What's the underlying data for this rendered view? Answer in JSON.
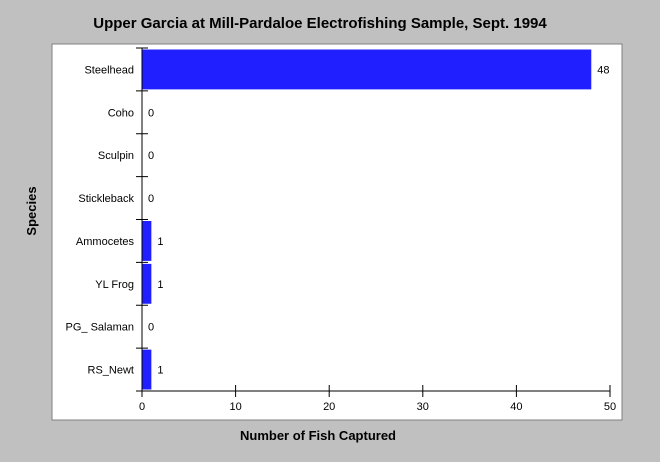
{
  "chart_data": {
    "type": "bar",
    "orientation": "horizontal",
    "title": "Upper Garcia at Mill-Pardaloe Electrofishing Sample, Sept. 1994",
    "xlabel": "Number of Fish Captured",
    "ylabel": "Species",
    "categories": [
      "Steelhead",
      "Coho",
      "Sculpin",
      "Stickleback",
      "Ammocetes",
      "YL Frog",
      "PG_ Salaman",
      "RS_Newt"
    ],
    "values": [
      48,
      0,
      0,
      0,
      1,
      1,
      0,
      1
    ],
    "xlim": [
      0,
      50
    ],
    "xticks": [
      0,
      10,
      20,
      30,
      40,
      50
    ],
    "grid": false,
    "legend": "none",
    "bar_color": "#1f1fff",
    "plot_background": "#ffffff",
    "page_background": "#c0c0c0"
  }
}
